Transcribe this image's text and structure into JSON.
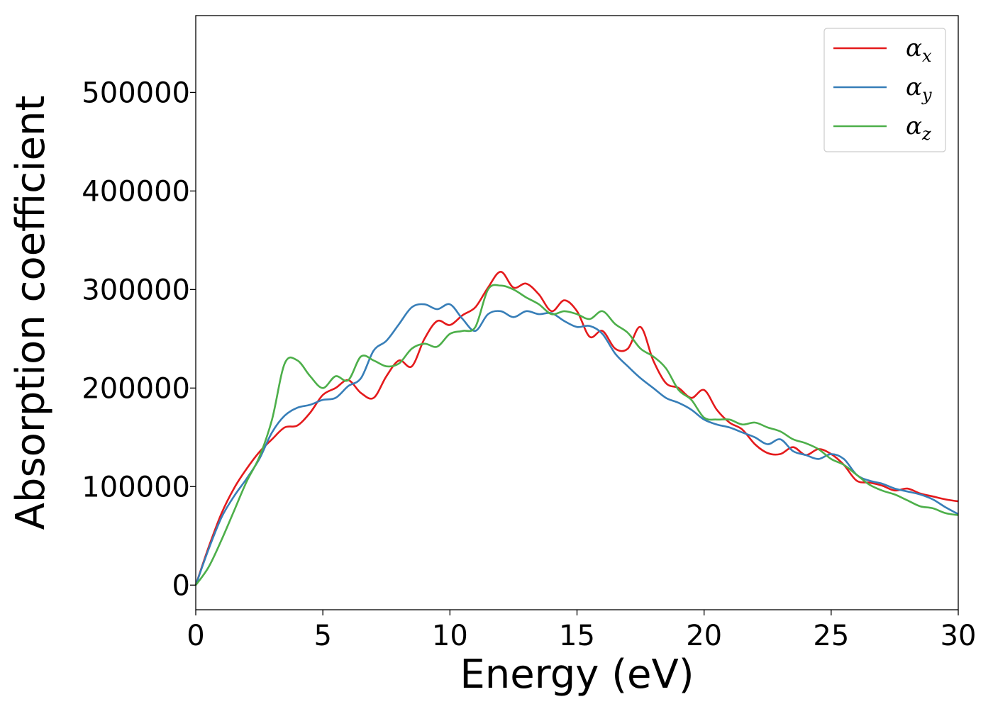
{
  "chart_data": {
    "type": "line",
    "xlabel": "Energy (eV)",
    "ylabel": "Absorption coefficient",
    "xlim": [
      0,
      30
    ],
    "ylim": [
      -25000,
      578000
    ],
    "x_ticks": [
      "0",
      "5",
      "10",
      "15",
      "20",
      "25",
      "30"
    ],
    "y_ticks": [
      "0",
      "100000",
      "200000",
      "300000",
      "400000",
      "500000"
    ],
    "grid": false,
    "legend_position": "top-right",
    "series": [
      {
        "name": "αx",
        "legend_symbol": "α",
        "legend_subscript": "x",
        "color": "#e41a1c",
        "x": [
          0,
          0.5,
          1,
          1.5,
          2,
          2.5,
          3,
          3.5,
          4,
          4.5,
          5,
          5.5,
          6,
          6.5,
          7,
          7.5,
          8,
          8.5,
          9,
          9.5,
          10,
          10.5,
          11,
          11.5,
          12,
          12.5,
          13,
          13.5,
          14,
          14.5,
          15,
          15.5,
          16,
          16.5,
          17,
          17.5,
          18,
          18.5,
          19,
          19.5,
          20,
          20.5,
          21,
          21.5,
          22,
          22.5,
          23,
          23.5,
          24,
          24.5,
          25,
          25.5,
          26,
          26.5,
          27,
          27.5,
          28,
          28.5,
          29,
          29.5,
          30
        ],
        "y": [
          0,
          38000,
          72000,
          98000,
          118000,
          135000,
          148000,
          160000,
          162000,
          175000,
          193000,
          200000,
          208000,
          195000,
          190000,
          212000,
          228000,
          222000,
          250000,
          268000,
          264000,
          274000,
          282000,
          302000,
          318000,
          302000,
          306000,
          295000,
          278000,
          289000,
          278000,
          252000,
          258000,
          240000,
          240000,
          262000,
          228000,
          205000,
          200000,
          190000,
          198000,
          178000,
          165000,
          158000,
          143000,
          134000,
          133000,
          140000,
          132000,
          138000,
          133000,
          122000,
          106000,
          104000,
          101000,
          96000,
          98000,
          93000,
          90000,
          87000,
          85000
        ]
      },
      {
        "name": "αy",
        "legend_symbol": "α",
        "legend_subscript": "y",
        "color": "#377eb8",
        "x": [
          0,
          0.5,
          1,
          1.5,
          2,
          2.5,
          3,
          3.5,
          4,
          4.5,
          5,
          5.5,
          6,
          6.5,
          7,
          7.5,
          8,
          8.5,
          9,
          9.5,
          10,
          10.5,
          11,
          11.5,
          12,
          12.5,
          13,
          13.5,
          14,
          14.5,
          15,
          15.5,
          16,
          16.5,
          17,
          17.5,
          18,
          18.5,
          19,
          19.5,
          20,
          20.5,
          21,
          21.5,
          22,
          22.5,
          23,
          23.5,
          24,
          24.5,
          25,
          25.5,
          26,
          26.5,
          27,
          27.5,
          28,
          28.5,
          29,
          29.5,
          30
        ],
        "y": [
          0,
          36000,
          68000,
          90000,
          108000,
          128000,
          155000,
          172000,
          180000,
          183000,
          188000,
          190000,
          202000,
          210000,
          238000,
          248000,
          265000,
          282000,
          285000,
          280000,
          285000,
          270000,
          258000,
          275000,
          278000,
          272000,
          278000,
          275000,
          276000,
          268000,
          262000,
          263000,
          255000,
          235000,
          222000,
          210000,
          200000,
          190000,
          185000,
          178000,
          168000,
          163000,
          160000,
          155000,
          150000,
          143000,
          148000,
          136000,
          132000,
          128000,
          133000,
          128000,
          112000,
          106000,
          103000,
          98000,
          95000,
          92000,
          87000,
          79000,
          72000
        ]
      },
      {
        "name": "αz",
        "legend_symbol": "α",
        "legend_subscript": "z",
        "color": "#4daf4a",
        "x": [
          0,
          0.5,
          1,
          1.5,
          2,
          2.5,
          3,
          3.5,
          4,
          4.5,
          5,
          5.5,
          6,
          6.5,
          7,
          7.5,
          8,
          8.5,
          9,
          9.5,
          10,
          10.5,
          11,
          11.5,
          12,
          12.5,
          13,
          13.5,
          14,
          14.5,
          15,
          15.5,
          16,
          16.5,
          17,
          17.5,
          18,
          18.5,
          19,
          19.5,
          20,
          20.5,
          21,
          21.5,
          22,
          22.5,
          23,
          23.5,
          24,
          24.5,
          25,
          25.5,
          26,
          26.5,
          27,
          27.5,
          28,
          28.5,
          29,
          29.5,
          30
        ],
        "y": [
          0,
          18000,
          45000,
          75000,
          105000,
          130000,
          168000,
          225000,
          228000,
          212000,
          200000,
          212000,
          208000,
          232000,
          228000,
          222000,
          225000,
          240000,
          245000,
          242000,
          255000,
          258000,
          262000,
          300000,
          304000,
          300000,
          292000,
          285000,
          275000,
          278000,
          275000,
          270000,
          278000,
          265000,
          256000,
          240000,
          232000,
          220000,
          198000,
          188000,
          170000,
          168000,
          168000,
          163000,
          165000,
          160000,
          156000,
          148000,
          144000,
          138000,
          128000,
          122000,
          112000,
          102000,
          96000,
          92000,
          86000,
          80000,
          78000,
          73000,
          71000
        ]
      }
    ]
  }
}
